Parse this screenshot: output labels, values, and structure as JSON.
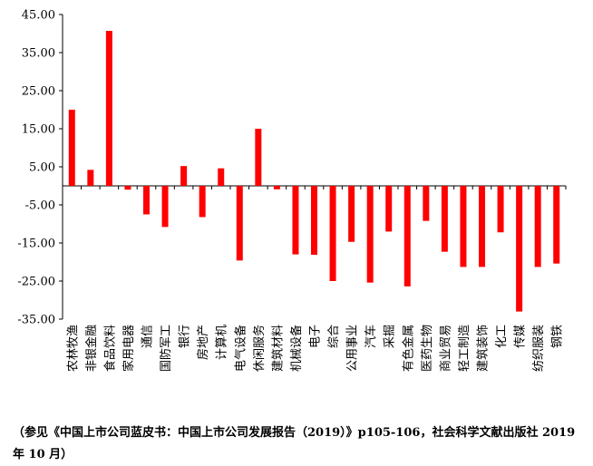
{
  "chart_data": {
    "type": "bar",
    "categories": [
      "农林牧渔",
      "非银金融",
      "食品饮料",
      "家用电器",
      "通信",
      "国防军工",
      "银行",
      "房地产",
      "计算机",
      "电气设备",
      "休闲服务",
      "建筑材料",
      "机械设备",
      "电子",
      "综合",
      "公用事业",
      "汽车",
      "采掘",
      "有色金属",
      "医药生物",
      "商业贸易",
      "轻工制造",
      "建筑装饰",
      "化工",
      "传媒",
      "纺织服装",
      "钢铁"
    ],
    "values": [
      20.0,
      4.2,
      40.7,
      -1.0,
      -7.5,
      -10.8,
      5.2,
      -8.2,
      4.6,
      -19.6,
      15.0,
      -0.9,
      -18.0,
      -18.1,
      -25.0,
      -14.7,
      -25.4,
      -12.0,
      -26.4,
      -9.2,
      -17.3,
      -21.3,
      -21.3,
      -12.2,
      -33.0,
      -21.3,
      -20.4
    ],
    "yticks": [
      "45.00",
      "35.00",
      "25.00",
      "15.00",
      "5.00",
      "-5.00",
      "-15.00",
      "-25.00",
      "-35.00"
    ],
    "ylim": [
      -35,
      45
    ],
    "color": "#ff0000",
    "title": "",
    "xlabel": "",
    "ylabel": ""
  },
  "source_note": "（参见《中国上市公司蓝皮书：中国上市公司发展报告（2019）》p105-106，社会科学文献出版社 2019 年 10 月）"
}
